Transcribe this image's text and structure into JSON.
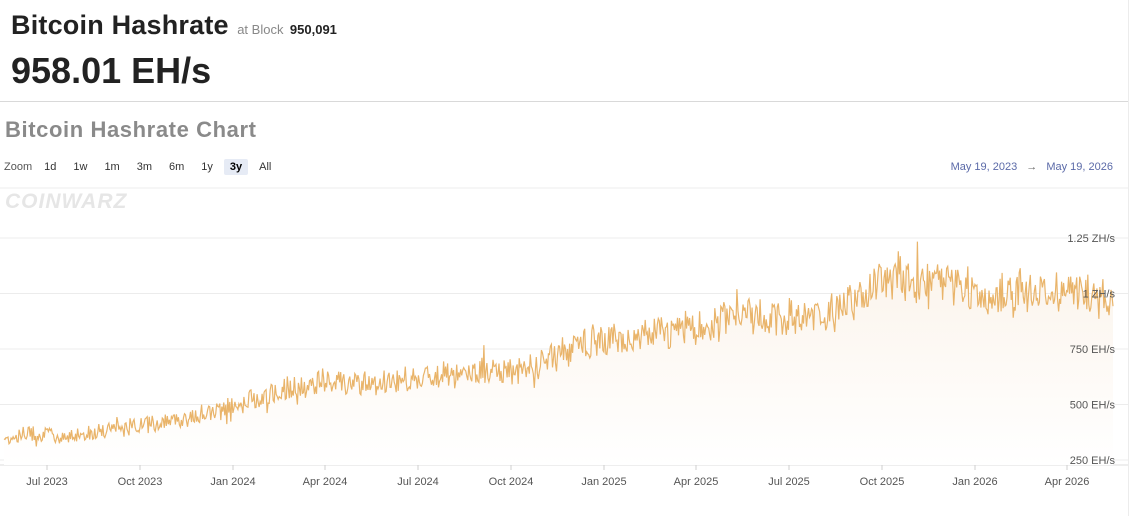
{
  "header": {
    "title": "Bitcoin Hashrate",
    "block_label": "at Block",
    "block_number": "950,091",
    "current_value": "958.01 EH/s"
  },
  "chart_section": {
    "title": "Bitcoin Hashrate Chart",
    "watermark": "COINWARZ"
  },
  "zoom": {
    "label": "Zoom",
    "buttons": [
      "1d",
      "1w",
      "1m",
      "3m",
      "6m",
      "1y",
      "3y",
      "All"
    ],
    "active": "3y"
  },
  "range": {
    "from": "May 19, 2023",
    "arrow": "→",
    "to": "May 19, 2026"
  },
  "colors": {
    "line": "#e9b46a",
    "area_top": "#fbf3ea",
    "grid": "#ececec",
    "range_text": "#5b6aa8"
  },
  "chart_data": {
    "type": "line",
    "x_range": [
      "2023-05-19",
      "2026-05-19"
    ],
    "x_tick_labels": [
      "Jul 2023",
      "Oct 2023",
      "Jan 2024",
      "Apr 2024",
      "Jul 2024",
      "Oct 2024",
      "Jan 2025",
      "Apr 2025",
      "Jul 2025",
      "Oct 2025",
      "Jan 2026",
      "Apr 2026"
    ],
    "y_ticks": [
      {
        "value": 250,
        "label": "250 EH/s"
      },
      {
        "value": 500,
        "label": "500 EH/s"
      },
      {
        "value": 750,
        "label": "750 EH/s"
      },
      {
        "value": 1000,
        "label": "1 ZH/s"
      },
      {
        "value": 1250,
        "label": "1.25 ZH/s"
      }
    ],
    "y_unit": "EH/s",
    "grid": true,
    "series": [
      {
        "points": [
          [
            "2023-05-19",
            345
          ],
          [
            "2023-06-15",
            375
          ],
          [
            "2023-07-15",
            355
          ],
          [
            "2023-08-15",
            380
          ],
          [
            "2023-09-15",
            395
          ],
          [
            "2023-10-15",
            420
          ],
          [
            "2023-11-15",
            440
          ],
          [
            "2023-12-15",
            470
          ],
          [
            "2024-01-15",
            520
          ],
          [
            "2024-02-15",
            560
          ],
          [
            "2024-03-15",
            590
          ],
          [
            "2024-04-15",
            610
          ],
          [
            "2024-05-15",
            590
          ],
          [
            "2024-06-15",
            610
          ],
          [
            "2024-07-15",
            630
          ],
          [
            "2024-08-15",
            640
          ],
          [
            "2024-09-15",
            645
          ],
          [
            "2024-10-15",
            660
          ],
          [
            "2024-11-15",
            720
          ],
          [
            "2024-12-15",
            780
          ],
          [
            "2025-01-15",
            800
          ],
          [
            "2025-02-15",
            810
          ],
          [
            "2025-03-15",
            830
          ],
          [
            "2025-04-15",
            860
          ],
          [
            "2025-05-15",
            900
          ],
          [
            "2025-06-15",
            880
          ],
          [
            "2025-07-15",
            890
          ],
          [
            "2025-08-15",
            920
          ],
          [
            "2025-09-15",
            990
          ],
          [
            "2025-10-15",
            1090
          ],
          [
            "2025-11-15",
            1060
          ],
          [
            "2025-12-15",
            1040
          ],
          [
            "2026-01-15",
            980
          ],
          [
            "2026-02-15",
            1010
          ],
          [
            "2026-03-15",
            1030
          ],
          [
            "2026-04-15",
            1000
          ],
          [
            "2026-05-19",
            960
          ]
        ]
      }
    ]
  }
}
